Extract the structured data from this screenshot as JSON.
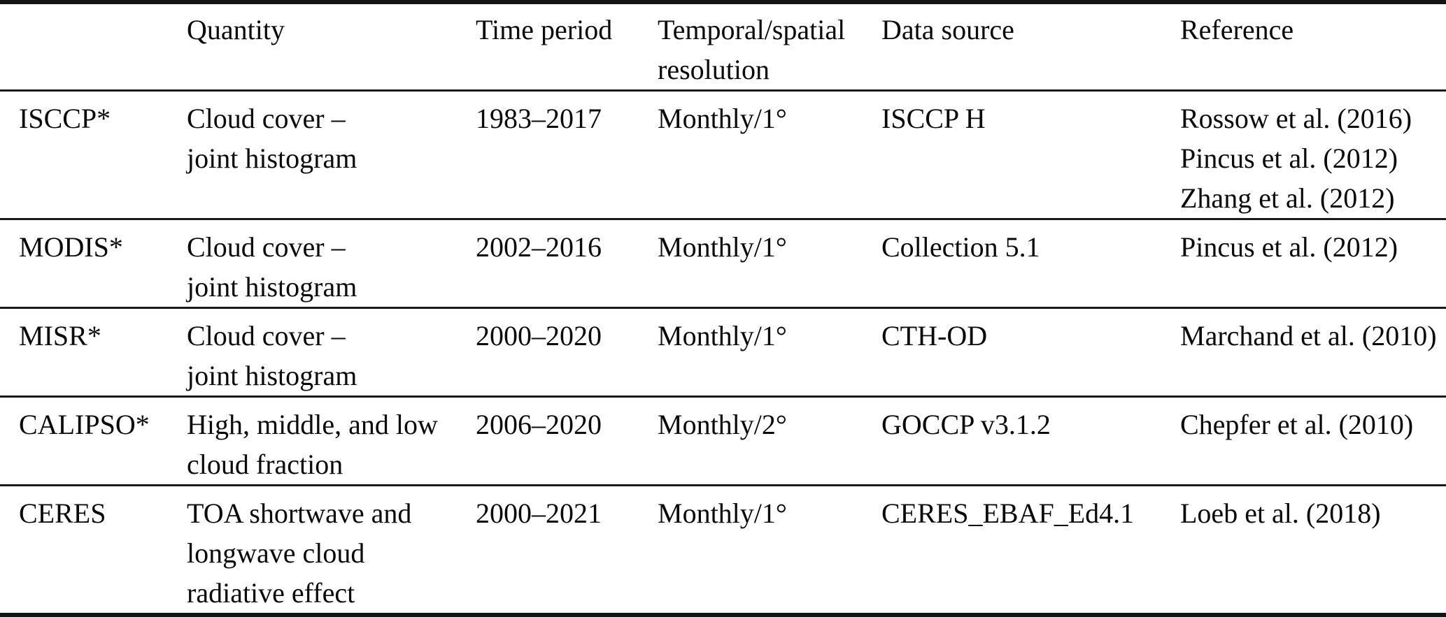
{
  "table": {
    "columns": [
      {
        "key": "dataset",
        "lines": [
          ""
        ]
      },
      {
        "key": "quantity",
        "lines": [
          "Quantity"
        ]
      },
      {
        "key": "time-period",
        "lines": [
          "Time period"
        ]
      },
      {
        "key": "resolution",
        "lines": [
          "Temporal/spatial",
          "resolution"
        ]
      },
      {
        "key": "data-source",
        "lines": [
          "Data source"
        ]
      },
      {
        "key": "reference",
        "lines": [
          "Reference"
        ]
      }
    ],
    "rows": [
      {
        "id": "isccp",
        "cells": [
          [
            "ISCCP*"
          ],
          [
            "Cloud cover –",
            "joint histogram"
          ],
          [
            "1983–2017"
          ],
          [
            "Monthly/1°"
          ],
          [
            "ISCCP H"
          ],
          [
            "Rossow et al. (2016)",
            "Pincus et al. (2012)",
            "Zhang et al. (2012)"
          ]
        ]
      },
      {
        "id": "modis",
        "cells": [
          [
            "MODIS*"
          ],
          [
            "Cloud cover –",
            "joint histogram"
          ],
          [
            "2002–2016"
          ],
          [
            "Monthly/1°"
          ],
          [
            "Collection 5.1"
          ],
          [
            "Pincus et al. (2012)"
          ]
        ]
      },
      {
        "id": "misr",
        "cells": [
          [
            "MISR*"
          ],
          [
            "Cloud cover –",
            "joint histogram"
          ],
          [
            "2000–2020"
          ],
          [
            "Monthly/1°"
          ],
          [
            "CTH-OD"
          ],
          [
            "Marchand et al. (2010)"
          ]
        ]
      },
      {
        "id": "calipso",
        "cells": [
          [
            "CALIPSO*"
          ],
          [
            "High, middle, and low",
            "cloud fraction"
          ],
          [
            "2006–2020"
          ],
          [
            "Monthly/2°"
          ],
          [
            "GOCCP v3.1.2"
          ],
          [
            "Chepfer et al. (2010)"
          ]
        ]
      },
      {
        "id": "ceres",
        "cells": [
          [
            "CERES"
          ],
          [
            "TOA shortwave and",
            "longwave cloud",
            "radiative effect"
          ],
          [
            "2000–2021"
          ],
          [
            "Monthly/1°"
          ],
          [
            "CERES_EBAF_Ed4.1"
          ],
          [
            "Loeb et al. (2018)"
          ]
        ]
      }
    ]
  },
  "colors": {
    "text": "#0a0a0a",
    "background": "#ffffff",
    "rule_heavy": "#141414",
    "rule_light": "#1a1a1a"
  }
}
